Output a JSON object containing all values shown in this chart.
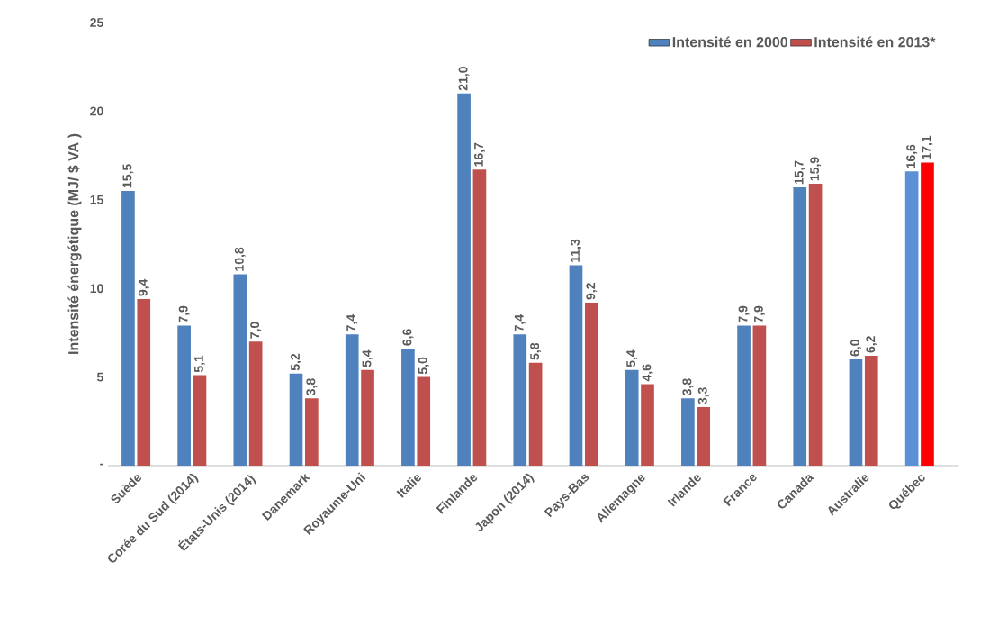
{
  "chart_data": {
    "type": "bar",
    "ylabel": "Intensité énergétique (MJ/ $ VA )",
    "categories": [
      "Suède",
      "Corée du Sud (2014)",
      "États-Unis (2014)",
      "Danemark",
      "Royaume-Uni",
      "Italie",
      "Finlande",
      "Japon (2014)",
      "Pays-Bas",
      "Allemagne",
      "Irlande",
      "France",
      "Canada",
      "Australie",
      "Québec"
    ],
    "series": [
      {
        "name": "Intensité en 2000",
        "colors": [
          "#4f81bd",
          "#4f81bd",
          "#4f81bd",
          "#4f81bd",
          "#4f81bd",
          "#4f81bd",
          "#4f81bd",
          "#4f81bd",
          "#4f81bd",
          "#4f81bd",
          "#4f81bd",
          "#4f81bd",
          "#4f81bd",
          "#4f81bd",
          "#5b8fd6"
        ],
        "values": [
          15.5,
          7.9,
          10.8,
          5.2,
          7.4,
          6.6,
          21.0,
          7.4,
          11.3,
          5.4,
          3.8,
          7.9,
          15.7,
          6.0,
          16.6
        ],
        "value_labels": [
          "15,5",
          "7,9",
          "10,8",
          "5,2",
          "7,4",
          "6,6",
          "21,0",
          "7,4",
          "11,3",
          "5,4",
          "3,8",
          "7,9",
          "15,7",
          "6,0",
          "16,6"
        ]
      },
      {
        "name": "Intensité en 2013*",
        "colors": [
          "#c0504d",
          "#c0504d",
          "#c0504d",
          "#c0504d",
          "#c0504d",
          "#c0504d",
          "#c0504d",
          "#c0504d",
          "#c0504d",
          "#c0504d",
          "#c0504d",
          "#c0504d",
          "#c0504d",
          "#c0504d",
          "#ff0000"
        ],
        "values": [
          9.4,
          5.1,
          7.0,
          3.8,
          5.4,
          5.0,
          16.7,
          5.8,
          9.2,
          4.6,
          3.3,
          7.9,
          15.9,
          6.2,
          17.1
        ],
        "value_labels": [
          "9,4",
          "5,1",
          "7,0",
          "3,8",
          "5,4",
          "5,0",
          "16,7",
          "5,8",
          "9,2",
          "4,6",
          "3,3",
          "7,9",
          "15,9",
          "6,2",
          "17,1"
        ]
      }
    ],
    "ylim": [
      0,
      25
    ],
    "yticks": [
      {
        "value": 0,
        "label": "-"
      },
      5,
      10,
      15,
      20,
      25
    ],
    "legend": "top right"
  }
}
